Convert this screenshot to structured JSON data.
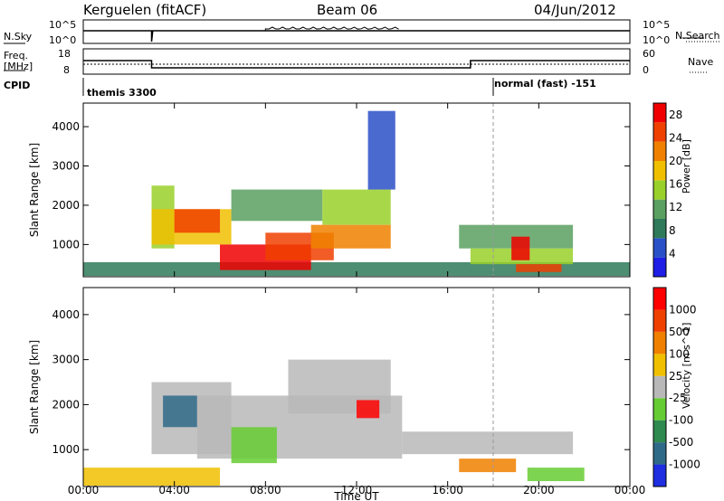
{
  "header": {
    "station": "Kerguelen (fitACF)",
    "beam": "Beam 06",
    "date": "04/Jun/2012"
  },
  "panels": {
    "nsky": {
      "label": "N.Sky",
      "right_label": "N.Search",
      "left_ticks": [
        "10^5",
        "10^0"
      ],
      "right_ticks": [
        "10^5",
        "10^0"
      ]
    },
    "freq": {
      "label_line1": "Freq.",
      "label_line2": "[MHz]",
      "right_label": "Nave",
      "left_ticks": [
        "18",
        "8"
      ],
      "right_ticks": [
        "60",
        "0"
      ]
    },
    "cpid": {
      "label": "CPID",
      "programs": [
        "themis 3300",
        "normal (fast) -151"
      ]
    }
  },
  "colors": {
    "power_scale": [
      "#1e1ee6",
      "#2a50c8",
      "#2f7a5a",
      "#5aa060",
      "#9ad02a",
      "#f0c000",
      "#f08000",
      "#f04000",
      "#f00000"
    ],
    "velocity_scale": [
      "#1e2ee0",
      "#2f6a88",
      "#2e8a4e",
      "#66cc33",
      "#b8b8b8",
      "#f0c000",
      "#f08000",
      "#f04000",
      "#ff0000"
    ]
  },
  "chart_data": [
    {
      "type": "heatmap",
      "title": "",
      "xlabel": "Time UT",
      "ylabel": "Slant Range [km]",
      "colorbar_label": "Power [dB]",
      "x_ticks": [
        "00:00",
        "04:00",
        "08:00",
        "12:00",
        "16:00",
        "20:00",
        "00:00"
      ],
      "xlim_hours": [
        0,
        24
      ],
      "y_ticks": [
        1000,
        2000,
        3000,
        4000
      ],
      "ylim_km": [
        180,
        4600
      ],
      "colorbar_ticks": [
        4,
        8,
        12,
        16,
        20,
        24,
        28
      ],
      "colorbar_range": [
        0,
        30
      ],
      "regions": [
        {
          "t0": 0.0,
          "t1": 24.0,
          "r0": 200,
          "r1": 550,
          "level": 2
        },
        {
          "t0": 3.0,
          "t1": 4.0,
          "r0": 900,
          "r1": 2500,
          "level": 4
        },
        {
          "t0": 3.0,
          "t1": 6.5,
          "r0": 1000,
          "r1": 1900,
          "level": 5
        },
        {
          "t0": 4.0,
          "t1": 6.0,
          "r0": 1300,
          "r1": 1900,
          "level": 7
        },
        {
          "t0": 6.5,
          "t1": 10.5,
          "r0": 1600,
          "r1": 2400,
          "level": 3
        },
        {
          "t0": 6.0,
          "t1": 10.0,
          "r0": 350,
          "r1": 1000,
          "level": 8
        },
        {
          "t0": 8.0,
          "t1": 11.0,
          "r0": 600,
          "r1": 1300,
          "level": 7
        },
        {
          "t0": 10.5,
          "t1": 13.5,
          "r0": 1500,
          "r1": 2400,
          "level": 4
        },
        {
          "t0": 10.0,
          "t1": 13.5,
          "r0": 900,
          "r1": 1500,
          "level": 6
        },
        {
          "t0": 12.5,
          "t1": 13.7,
          "r0": 2400,
          "r1": 4400,
          "level": 1
        },
        {
          "t0": 16.5,
          "t1": 21.5,
          "r0": 900,
          "r1": 1500,
          "level": 3
        },
        {
          "t0": 17.0,
          "t1": 21.5,
          "r0": 500,
          "r1": 900,
          "level": 4
        },
        {
          "t0": 18.8,
          "t1": 19.6,
          "r0": 600,
          "r1": 1200,
          "level": 8
        },
        {
          "t0": 19.0,
          "t1": 21.0,
          "r0": 300,
          "r1": 500,
          "level": 7
        }
      ]
    },
    {
      "type": "heatmap",
      "title": "",
      "xlabel": "Time UT",
      "ylabel": "Slant Range [km]",
      "colorbar_label": "Velocity [m s^-1]",
      "x_ticks": [
        "00:00",
        "04:00",
        "08:00",
        "12:00",
        "16:00",
        "20:00",
        "00:00"
      ],
      "xlim_hours": [
        0,
        24
      ],
      "y_ticks": [
        1000,
        2000,
        3000,
        4000
      ],
      "ylim_km": [
        180,
        4600
      ],
      "colorbar_ticks": [
        "1000",
        "500",
        "100",
        "25",
        "-25",
        "-100",
        "-500",
        "-1000"
      ],
      "regions": [
        {
          "t0": 0.0,
          "t1": 6.0,
          "r0": 200,
          "r1": 600,
          "level": 5
        },
        {
          "t0": 3.0,
          "t1": 6.5,
          "r0": 900,
          "r1": 2500,
          "level": 4
        },
        {
          "t0": 3.5,
          "t1": 5.0,
          "r0": 1500,
          "r1": 2200,
          "level": 1
        },
        {
          "t0": 5.0,
          "t1": 14.0,
          "r0": 800,
          "r1": 2200,
          "level": 4
        },
        {
          "t0": 9.0,
          "t1": 13.5,
          "r0": 1800,
          "r1": 3000,
          "level": 4
        },
        {
          "t0": 12.0,
          "t1": 13.0,
          "r0": 1700,
          "r1": 2100,
          "level": 8
        },
        {
          "t0": 6.5,
          "t1": 8.5,
          "r0": 700,
          "r1": 1500,
          "level": 3
        },
        {
          "t0": 14.0,
          "t1": 21.5,
          "r0": 900,
          "r1": 1400,
          "level": 4
        },
        {
          "t0": 16.5,
          "t1": 19.0,
          "r0": 500,
          "r1": 800,
          "level": 6
        },
        {
          "t0": 19.5,
          "t1": 22.0,
          "r0": 300,
          "r1": 600,
          "level": 3
        }
      ]
    }
  ]
}
